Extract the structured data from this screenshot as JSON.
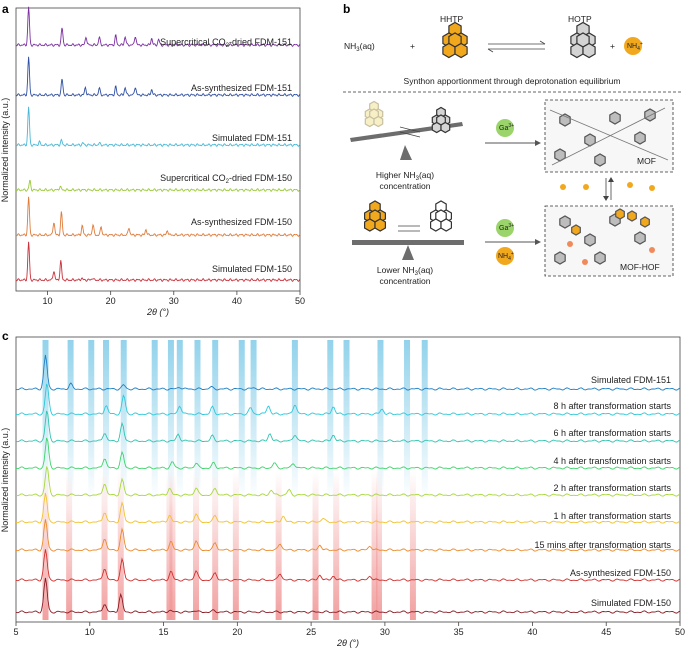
{
  "panel_labels": {
    "a": "a",
    "b": "b",
    "c": "c"
  },
  "panel_a": {
    "ylabel": "Normalized intensity (a.u.)",
    "xlabel": "2θ (°)",
    "xticks": [
      "10",
      "20",
      "30",
      "40",
      "50"
    ]
  },
  "panel_c": {
    "ylabel": "Normalized intensity (a.u.)",
    "xlabel": "2θ (°)",
    "xticks": [
      "5",
      "10",
      "15",
      "20",
      "25",
      "30",
      "35",
      "40",
      "45",
      "50"
    ]
  },
  "panel_b": {
    "hhtp": "HHTP",
    "hotp": "HOTP",
    "nh3": "NH3(aq)",
    "nh3_base": "NH",
    "nh3_sub": "3",
    "nh3_tail": "(aq)",
    "plus": "+",
    "nh4": "NH4+",
    "nh4_base": "NH",
    "nh4_sub": "4",
    "nh4_sup": "+",
    "caption": "Synthon apportionment through deprotonation equilibrium",
    "ga": "Ga3+",
    "ga_base": "Ga",
    "ga_sup": "3+",
    "higher_1": "Higher NH3(aq)",
    "higher_1_base": "Higher NH",
    "higher_1_sub": "3",
    "higher_1_tail": "(aq)",
    "higher_2": "concentration",
    "lower_1": "Lower NH3(aq)",
    "lower_1_base": "Lower NH",
    "lower_1_sub": "3",
    "lower_1_tail": "(aq)",
    "lower_2": "concentration",
    "mof": "MOF",
    "mofhof": "MOF-HOF"
  },
  "colors": {
    "supercrit151": "#7b2fa0",
    "assyn151": "#2e4fa3",
    "sim151": "#48b7d6",
    "supercrit150": "#9ac93a",
    "assyn150": "#e07b39",
    "sim150": "#c8303a",
    "hex_yellow": "#f2a81d",
    "blue_band": "#8cd0ea",
    "red_band": "#f19a9a"
  },
  "chart_data": [
    {
      "panel": "a",
      "type": "line",
      "xlabel": "2θ (°)",
      "ylabel": "Normalized intensity (a.u.)",
      "xlim": [
        5,
        50
      ],
      "xticks": [
        10,
        20,
        30,
        40,
        50
      ],
      "series": [
        {
          "name": "Supercritical CO2-dried FDM-151",
          "label_base": "Supercritical CO",
          "label_sub": "2",
          "label_tail": "-dried FDM-151",
          "color": "#7b2fa0",
          "baseline": 0,
          "peaks": [
            [
              7.0,
              1.0
            ],
            [
              12.3,
              0.45
            ],
            [
              16.1,
              0.22
            ],
            [
              18.2,
              0.2
            ],
            [
              20.8,
              0.25
            ],
            [
              22.3,
              0.22
            ],
            [
              23.9,
              0.24
            ],
            [
              26.5,
              0.18
            ],
            [
              27.6,
              0.15
            ]
          ]
        },
        {
          "name": "As-synthesized FDM-151",
          "color": "#2e4fa3",
          "baseline": 1,
          "peaks": [
            [
              7.0,
              1.0
            ],
            [
              12.3,
              0.42
            ],
            [
              16.0,
              0.2
            ],
            [
              18.2,
              0.18
            ],
            [
              20.8,
              0.22
            ],
            [
              22.3,
              0.2
            ],
            [
              23.9,
              0.22
            ],
            [
              26.5,
              0.15
            ]
          ]
        },
        {
          "name": "Simulated FDM-151",
          "color": "#48b7d6",
          "baseline": 2,
          "peaks": [
            [
              7.0,
              1.0
            ],
            [
              8.7,
              0.08
            ],
            [
              12.2,
              0.12
            ],
            [
              15.6,
              0.05
            ],
            [
              18.2,
              0.05
            ]
          ]
        },
        {
          "name": "Supercritical CO2-dried FDM-150",
          "label_base": "Supercritical CO",
          "label_sub": "2",
          "label_tail": "-dried FDM-150",
          "color": "#9ac93a",
          "baseline": 3,
          "peaks": [
            [
              7.2,
              0.25
            ],
            [
              12.0,
              0.1
            ]
          ]
        },
        {
          "name": "As-synthesized FDM-150",
          "color": "#e07b39",
          "baseline": 4,
          "peaks": [
            [
              7.0,
              1.0
            ],
            [
              11.0,
              0.35
            ],
            [
              12.2,
              0.6
            ],
            [
              15.5,
              0.25
            ],
            [
              17.2,
              0.28
            ],
            [
              18.5,
              0.22
            ],
            [
              22.9,
              0.2
            ],
            [
              25.6,
              0.15
            ],
            [
              29.0,
              0.12
            ]
          ]
        },
        {
          "name": "Simulated FDM-150",
          "color": "#c8303a",
          "baseline": 5,
          "peaks": [
            [
              7.0,
              1.0
            ],
            [
              11.0,
              0.25
            ],
            [
              12.1,
              0.5
            ],
            [
              15.4,
              0.05
            ],
            [
              17.1,
              0.05
            ]
          ]
        }
      ]
    },
    {
      "panel": "c",
      "type": "line",
      "xlabel": "2θ (°)",
      "ylabel": "Normalized intensity (a.u.)",
      "xlim": [
        5,
        50
      ],
      "xticks": [
        5,
        10,
        15,
        20,
        25,
        30,
        35,
        40,
        45,
        50
      ],
      "blue_bands": [
        7.0,
        8.7,
        10.1,
        11.1,
        12.3,
        14.4,
        15.5,
        16.1,
        17.3,
        18.5,
        20.3,
        21.1,
        23.9,
        26.3,
        27.4,
        29.7,
        31.5,
        32.7
      ],
      "red_bands": [
        7.0,
        8.6,
        11.0,
        12.1,
        15.4,
        15.6,
        17.2,
        18.5,
        19.9,
        22.8,
        25.3,
        26.7,
        29.3,
        29.6,
        31.9
      ],
      "series": [
        {
          "name": "Simulated FDM-151",
          "color": "#1e7fc4",
          "baseline": 0,
          "peaks": [
            [
              7.0,
              1.0
            ],
            [
              8.7,
              0.15
            ],
            [
              12.3,
              0.12
            ],
            [
              16.1,
              0.06
            ],
            [
              18.2,
              0.06
            ],
            [
              21.1,
              0.04
            ]
          ]
        },
        {
          "name": "8 h after transformation starts",
          "color": "#2ec9d9",
          "baseline": 1,
          "peaks": [
            [
              7.1,
              0.9
            ],
            [
              11.1,
              0.25
            ],
            [
              12.3,
              0.55
            ],
            [
              16.1,
              0.25
            ],
            [
              18.3,
              0.2
            ],
            [
              20.9,
              0.18
            ],
            [
              22.1,
              0.25
            ],
            [
              23.9,
              0.3
            ],
            [
              26.5,
              0.22
            ],
            [
              29.8,
              0.15
            ]
          ]
        },
        {
          "name": "6 h after transformation starts",
          "color": "#31c4b0",
          "baseline": 2,
          "peaks": [
            [
              7.1,
              0.9
            ],
            [
              11.0,
              0.25
            ],
            [
              12.2,
              0.5
            ],
            [
              16.0,
              0.2
            ],
            [
              18.3,
              0.15
            ],
            [
              22.2,
              0.22
            ],
            [
              23.9,
              0.2
            ],
            [
              26.5,
              0.18
            ]
          ]
        },
        {
          "name": "4 h after transformation starts",
          "color": "#3ed46a",
          "baseline": 3,
          "peaks": [
            [
              7.1,
              0.9
            ],
            [
              11.0,
              0.3
            ],
            [
              12.2,
              0.45
            ],
            [
              15.6,
              0.18
            ],
            [
              17.2,
              0.15
            ],
            [
              18.4,
              0.15
            ],
            [
              22.5,
              0.15
            ],
            [
              23.8,
              0.15
            ]
          ]
        },
        {
          "name": "2 h after transformation starts",
          "color": "#a8d83a",
          "baseline": 4,
          "peaks": [
            [
              7.1,
              0.85
            ],
            [
              11.0,
              0.35
            ],
            [
              12.2,
              0.45
            ],
            [
              15.4,
              0.2
            ],
            [
              17.2,
              0.22
            ],
            [
              18.5,
              0.2
            ],
            [
              22.3,
              0.15
            ],
            [
              23.5,
              0.15
            ]
          ]
        },
        {
          "name": "1 h after transformation starts",
          "color": "#f2c12e",
          "baseline": 5,
          "peaks": [
            [
              7.0,
              0.85
            ],
            [
              11.0,
              0.3
            ],
            [
              12.2,
              0.55
            ],
            [
              15.4,
              0.2
            ],
            [
              17.2,
              0.25
            ],
            [
              18.5,
              0.2
            ],
            [
              23.1,
              0.18
            ],
            [
              25.8,
              0.12
            ]
          ]
        },
        {
          "name": "15 mins after transformation starts",
          "color": "#ec8a2a",
          "baseline": 6,
          "peaks": [
            [
              7.0,
              0.9
            ],
            [
              11.0,
              0.35
            ],
            [
              12.2,
              0.6
            ],
            [
              15.5,
              0.25
            ],
            [
              17.2,
              0.28
            ],
            [
              18.5,
              0.22
            ],
            [
              22.9,
              0.2
            ],
            [
              25.6,
              0.15
            ],
            [
              29.0,
              0.12
            ]
          ]
        },
        {
          "name": "As-synthesized FDM-150",
          "color": "#d0312d",
          "baseline": 7,
          "peaks": [
            [
              7.0,
              0.9
            ],
            [
              11.0,
              0.35
            ],
            [
              12.2,
              0.6
            ],
            [
              15.5,
              0.25
            ],
            [
              17.2,
              0.28
            ],
            [
              18.5,
              0.22
            ],
            [
              22.9,
              0.2
            ],
            [
              25.6,
              0.15
            ],
            [
              26.5,
              0.12
            ],
            [
              29.0,
              0.12
            ]
          ]
        },
        {
          "name": "Simulated FDM-150",
          "color": "#8a1c24",
          "baseline": 8,
          "peaks": [
            [
              7.0,
              1.0
            ],
            [
              11.0,
              0.25
            ],
            [
              12.1,
              0.5
            ],
            [
              15.4,
              0.05
            ],
            [
              17.1,
              0.05
            ],
            [
              18.4,
              0.04
            ]
          ]
        }
      ]
    }
  ]
}
